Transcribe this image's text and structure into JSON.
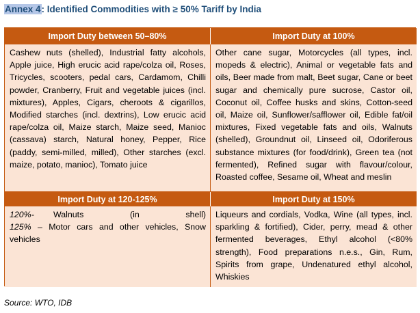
{
  "title": {
    "prefix": "Annex 4",
    "text": ": Identified Commodities with ≥ 50% Tariff by India"
  },
  "table": {
    "headers": {
      "h1": "Import Duty between 50–80%",
      "h2": "Import Duty at 100%",
      "h3": "Import Duty at 120-125%",
      "h4": "Import Duty at 150%"
    },
    "cells": {
      "c1": "Cashew nuts (shelled), Industrial fatty alcohols, Apple juice, High erucic acid rape/colza oil, Roses, Tricycles, scooters, pedal cars, Cardamom, Chilli powder, Cranberry, Fruit and vegetable juices (incl. mixtures), Apples, Cigars, cheroots & cigarillos, Modified starches (incl. dextrins), Low erucic acid rape/colza oil, Maize starch, Maize seed, Manioc (cassava) starch, Natural honey, Pepper, Rice (paddy, semi-milled, milled), Other starches (excl. maize, potato, manioc), Tomato juice",
      "c2": "Other cane sugar, Motorcycles (all types, incl. mopeds & electric), Animal or vegetable fats and oils, Beer made from malt, Beet sugar, Cane or beet sugar and chemically pure sucrose, Castor oil, Coconut oil, Coffee husks and skins, Cotton-seed oil, Maize oil, Sunflower/safflower oil, Edible fat/oil mixtures, Fixed vegetable fats and oils, Walnuts (shelled), Groundnut oil, Linseed oil, Odoriferous substance mixtures (for food/drink), Green tea (not fermented), Refined sugar with flavour/colour, Roasted coffee, Sesame oil, Wheat and meslin",
      "c3": {
        "line1_pct": "120%-",
        "line1_text": "Walnuts (in shell)",
        "line2_pct": "125%",
        "line2_text": "– Motor cars and other vehicles, Snow vehicles"
      },
      "c4": "Liqueurs and cordials, Vodka, Wine (all types, incl. sparkling & fortified), Cider, perry, mead & other fermented beverages, Ethyl alcohol (<80% strength), Food preparations n.e.s., Gin, Rum, Spirits from grape, Undenatured ethyl alcohol, Whiskies"
    }
  },
  "source": "Source: WTO, IDB",
  "colors": {
    "header_bg": "#c55a11",
    "cell_bg": "#fbe4d5",
    "title": "#1f4e79",
    "title_highlight": "#b4c6e7"
  }
}
